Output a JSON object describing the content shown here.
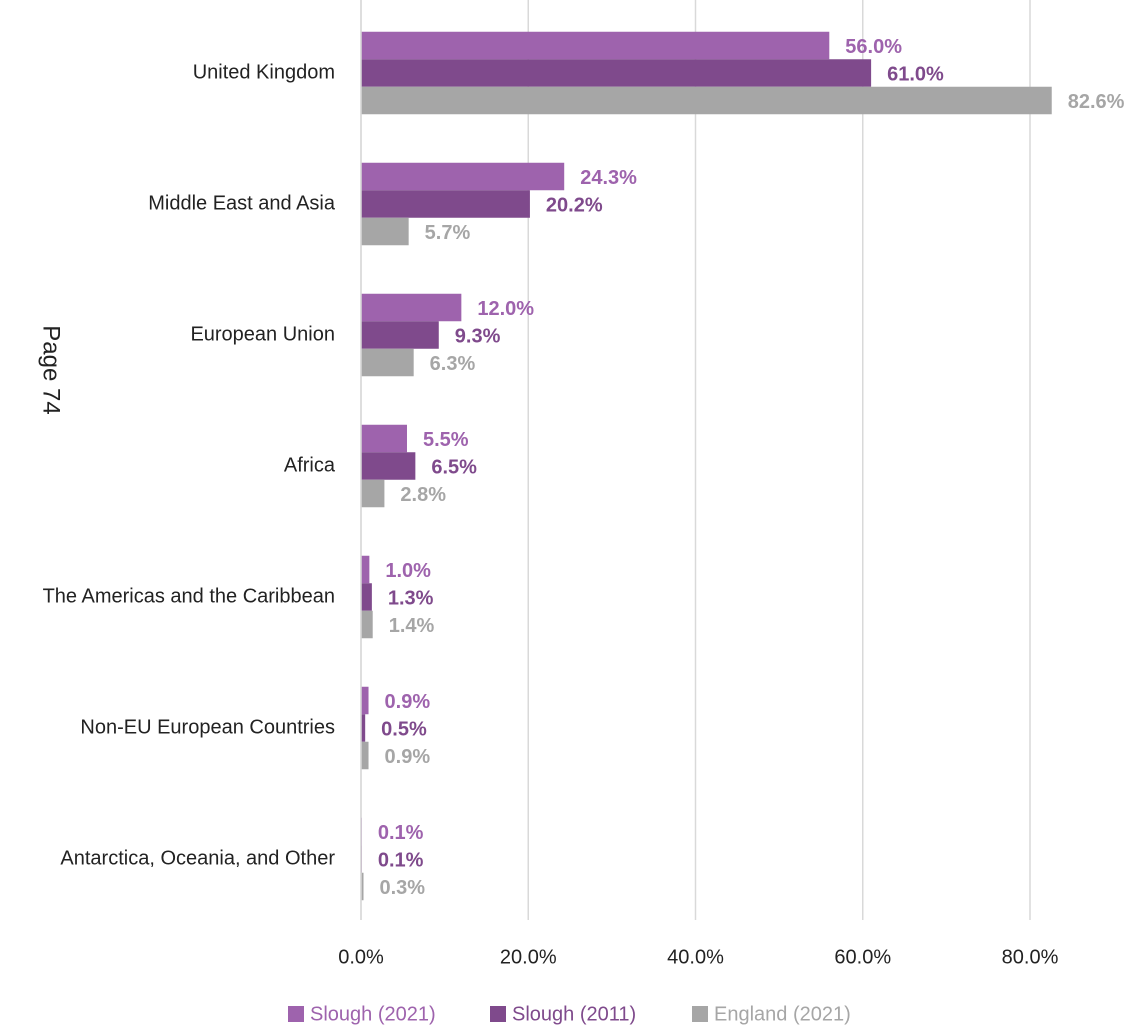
{
  "page_label": "Page 74",
  "chart_data": {
    "type": "hbar",
    "categories": [
      "United Kingdom",
      "Middle East and Asia",
      "European Union",
      "Africa",
      "The Americas and the Caribbean",
      "Non-EU European Countries",
      "Antarctica, Oceania, and Other"
    ],
    "series": [
      {
        "name": "Slough (2021)",
        "color": "#9e63ad",
        "values": [
          56.0,
          24.3,
          12.0,
          5.5,
          1.0,
          0.9,
          0.1
        ],
        "value_labels": [
          "56.0%",
          "24.3%",
          "12.0%",
          "5.5%",
          "1.0%",
          "0.9%",
          "0.1%"
        ]
      },
      {
        "name": "Slough (2011)",
        "color": "#7f4a8c",
        "values": [
          61.0,
          20.2,
          9.3,
          6.5,
          1.3,
          0.5,
          0.1
        ],
        "value_labels": [
          "61.0%",
          "20.2%",
          "9.3%",
          "6.5%",
          "1.3%",
          "0.5%",
          "0.1%"
        ]
      },
      {
        "name": "England (2021)",
        "color": "#a6a6a6",
        "values": [
          82.6,
          5.7,
          6.3,
          2.8,
          1.4,
          0.9,
          0.3
        ],
        "value_labels": [
          "82.6%",
          "5.7%",
          "6.3%",
          "2.8%",
          "1.4%",
          "0.9%",
          "0.3%"
        ]
      }
    ],
    "xlim": [
      0,
      80
    ],
    "xticks": [
      {
        "value": 0,
        "label": "0.0%"
      },
      {
        "value": 20,
        "label": "20.0%"
      },
      {
        "value": 40,
        "label": "40.0%"
      },
      {
        "value": 60,
        "label": "60.0%"
      },
      {
        "value": 80,
        "label": "80.0%"
      }
    ],
    "grid": true,
    "legend": "bottom"
  }
}
